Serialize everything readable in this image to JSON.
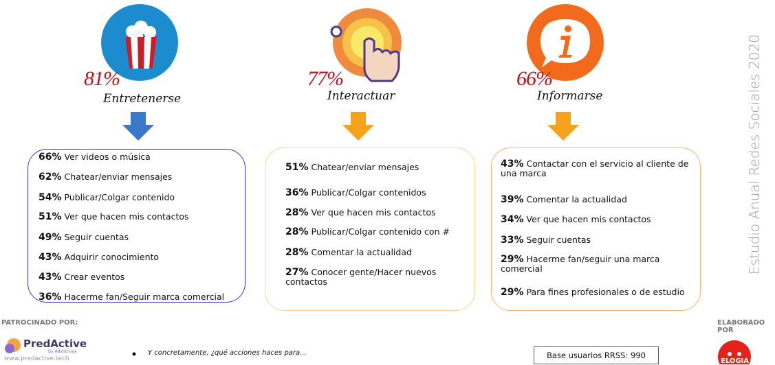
{
  "side_title": "Estudio Anual Redes Sociales 2020",
  "columns": [
    {
      "percent": "81%",
      "title": "Entretenerse",
      "items": [
        {
          "pct": "66%",
          "text": "Ver videos o música"
        },
        {
          "pct": "62%",
          "text": "Chatear/enviar mensajes"
        },
        {
          "pct": "54%",
          "text": "Publicar/Colgar contenido"
        },
        {
          "pct": "51%",
          "text": "Ver que hacen mis contactos"
        },
        {
          "pct": "49%",
          "text": "Seguir cuentas"
        },
        {
          "pct": "43%",
          "text": "Adquirir conocimiento"
        },
        {
          "pct": "43%",
          "text": "Crear eventos"
        },
        {
          "pct": "36%",
          "text": "Hacerme fan/Seguir marca comercial"
        }
      ]
    },
    {
      "percent": "77%",
      "title": "Interactuar",
      "items": [
        {
          "pct": "51%",
          "text": "Chatear/enviar mensajes"
        },
        {
          "pct": "36%",
          "text": "Publicar/Colgar contenidos"
        },
        {
          "pct": "28%",
          "text": "Ver que hacen mis contactos"
        },
        {
          "pct": "28%",
          "text": "Publicar/Colgar contenido con #"
        },
        {
          "pct": "28%",
          "text": "Comentar la actualidad"
        },
        {
          "pct": "27%",
          "text": "Conocer gente/Hacer nuevos contactos"
        }
      ]
    },
    {
      "percent": "66%",
      "title": "Informarse",
      "items": [
        {
          "pct": "43%",
          "text": "Contactar con el servicio al cliente de una marca"
        },
        {
          "pct": "39%",
          "text": "Comentar la actualidad"
        },
        {
          "pct": "34%",
          "text": "Ver que hacen mis contactos"
        },
        {
          "pct": "33%",
          "text": "Seguir cuentas"
        },
        {
          "pct": "29%",
          "text": "Hacerme fan/seguir una marca comercial"
        },
        {
          "pct": "29%",
          "text": "Para fines profesionales o de estudio"
        }
      ]
    }
  ],
  "sponsor": {
    "label": "PATROCINADO POR:",
    "name": "PredActive",
    "by": "By Adsbizvaja",
    "url": "www.predactive.tech"
  },
  "question": "Y concretamente, ¿qué acciones haces para...",
  "base_note": "Base usuarios RRSS: 990",
  "agency": {
    "label": "ELABORADO POR",
    "name": "ELOGIA"
  }
}
